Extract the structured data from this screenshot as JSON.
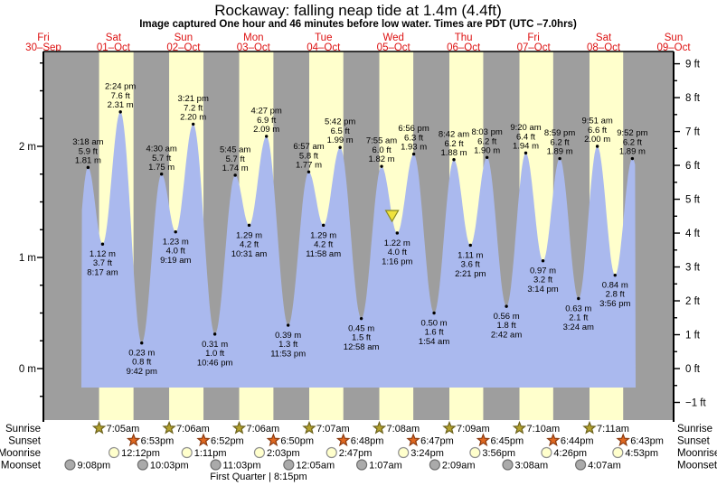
{
  "title": "Rockaway: falling  neap tide at 1.4m (4.4ft)",
  "subtitle": "Image captured One hour and 46 minutes before low water. Times are PDT (UTC –7.0hrs)",
  "colors": {
    "night_band": "#9e9e9e",
    "day_band": "#ffffcc",
    "tide_fill": "#aab9ee",
    "date_text": "#dd1111",
    "sunrise_star": "#b2a12e",
    "sunrise_star_edge": "#6b611c",
    "sunset_star": "#e06820",
    "sunset_star_edge": "#8a3a10",
    "moonrise_dot": "#ffffcc",
    "moonrise_dot_edge": "#909090",
    "moonset_dot": "#aaaaaa",
    "moonset_dot_edge": "#707070",
    "marker_fill": "#f0e23c",
    "marker_edge": "#8a8a20"
  },
  "chart_data": {
    "type": "area",
    "title": "Rockaway: falling  neap tide at 1.4m (4.4ft)",
    "x_axis_days": [
      {
        "name": "Fri",
        "date": "30–Sep"
      },
      {
        "name": "Sat",
        "date": "01–Oct"
      },
      {
        "name": "Sun",
        "date": "02–Oct"
      },
      {
        "name": "Mon",
        "date": "03–Oct"
      },
      {
        "name": "Tue",
        "date": "04–Oct"
      },
      {
        "name": "Wed",
        "date": "05–Oct"
      },
      {
        "name": "Thu",
        "date": "06–Oct"
      },
      {
        "name": "Fri",
        "date": "07–Oct"
      },
      {
        "name": "Sat",
        "date": "08–Oct"
      },
      {
        "name": "Sun",
        "date": "09–Oct"
      }
    ],
    "y_left_ticks": [
      {
        "v": 0,
        "label": "0 m"
      },
      {
        "v": 1,
        "label": "1 m"
      },
      {
        "v": 2,
        "label": "2 m"
      }
    ],
    "y_right_ticks": [
      {
        "v": -1,
        "label": "−1 ft"
      },
      {
        "v": 0,
        "label": "0 ft"
      },
      {
        "v": 1,
        "label": "1 ft"
      },
      {
        "v": 2,
        "label": "2 ft"
      },
      {
        "v": 3,
        "label": "3 ft"
      },
      {
        "v": 4,
        "label": "4 ft"
      },
      {
        "v": 5,
        "label": "5 ft"
      },
      {
        "v": 6,
        "label": "6 ft"
      },
      {
        "v": 7,
        "label": "7 ft"
      },
      {
        "v": 8,
        "label": "8 ft"
      },
      {
        "v": 9,
        "label": "9 ft"
      }
    ],
    "tides": [
      {
        "day": 1,
        "time": "3:18 am",
        "type": "H",
        "ft": "5.9",
        "m": "1.81"
      },
      {
        "day": 1,
        "time": "8:17 am",
        "type": "L",
        "ft": "3.7",
        "m": "1.12"
      },
      {
        "day": 1,
        "time": "2:24 pm",
        "type": "H",
        "ft": "7.6",
        "m": "2.31"
      },
      {
        "day": 1,
        "time": "9:42 pm",
        "type": "L",
        "ft": "0.8",
        "m": "0.23"
      },
      {
        "day": 2,
        "time": "4:30 am",
        "type": "H",
        "ft": "5.7",
        "m": "1.75"
      },
      {
        "day": 2,
        "time": "9:19 am",
        "type": "L",
        "ft": "4.0",
        "m": "1.23"
      },
      {
        "day": 2,
        "time": "3:21 pm",
        "type": "H",
        "ft": "7.2",
        "m": "2.20"
      },
      {
        "day": 2,
        "time": "10:46 pm",
        "type": "L",
        "ft": "1.0",
        "m": "0.31"
      },
      {
        "day": 3,
        "time": "5:45 am",
        "type": "H",
        "ft": "5.7",
        "m": "1.74"
      },
      {
        "day": 3,
        "time": "10:31 am",
        "type": "L",
        "ft": "4.2",
        "m": "1.29"
      },
      {
        "day": 3,
        "time": "4:27 pm",
        "type": "H",
        "ft": "6.9",
        "m": "2.09"
      },
      {
        "day": 3,
        "time": "11:53 pm",
        "type": "L",
        "ft": "1.3",
        "m": "0.39"
      },
      {
        "day": 4,
        "time": "6:57 am",
        "type": "H",
        "ft": "5.8",
        "m": "1.77"
      },
      {
        "day": 4,
        "time": "11:58 am",
        "type": "L",
        "ft": "4.2",
        "m": "1.29"
      },
      {
        "day": 4,
        "time": "5:42 pm",
        "type": "H",
        "ft": "6.5",
        "m": "1.99"
      },
      {
        "day": 5,
        "time": "12:58 am",
        "type": "L",
        "ft": "1.5",
        "m": "0.45"
      },
      {
        "day": 5,
        "time": "7:55 am",
        "type": "H",
        "ft": "6.0",
        "m": "1.82"
      },
      {
        "day": 5,
        "time": "1:16 pm",
        "type": "L",
        "ft": "4.0",
        "m": "1.22"
      },
      {
        "day": 5,
        "time": "6:56 pm",
        "type": "H",
        "ft": "6.3",
        "m": "1.93"
      },
      {
        "day": 6,
        "time": "1:54 am",
        "type": "L",
        "ft": "1.6",
        "m": "0.50"
      },
      {
        "day": 6,
        "time": "8:42 am",
        "type": "H",
        "ft": "6.2",
        "m": "1.88"
      },
      {
        "day": 6,
        "time": "2:21 pm",
        "type": "L",
        "ft": "3.6",
        "m": "1.11"
      },
      {
        "day": 6,
        "time": "8:03 pm",
        "type": "H",
        "ft": "6.2",
        "m": "1.90"
      },
      {
        "day": 7,
        "time": "2:42 am",
        "type": "L",
        "ft": "1.8",
        "m": "0.56"
      },
      {
        "day": 7,
        "time": "9:20 am",
        "type": "H",
        "ft": "6.4",
        "m": "1.94"
      },
      {
        "day": 7,
        "time": "3:14 pm",
        "type": "L",
        "ft": "3.2",
        "m": "0.97"
      },
      {
        "day": 7,
        "time": "8:59 pm",
        "type": "H",
        "ft": "6.2",
        "m": "1.89"
      },
      {
        "day": 8,
        "time": "3:24 am",
        "type": "L",
        "ft": "2.1",
        "m": "0.63"
      },
      {
        "day": 8,
        "time": "9:51 am",
        "type": "H",
        "ft": "6.6",
        "m": "2.00"
      },
      {
        "day": 8,
        "time": "3:56 pm",
        "type": "L",
        "ft": "2.8",
        "m": "0.84"
      },
      {
        "day": 8,
        "time": "9:52 pm",
        "type": "H",
        "ft": "6.2",
        "m": "1.89"
      }
    ],
    "capture_marker": {
      "day": 5,
      "time": "11:30 am",
      "note": "One hour and 46 minutes before 1:16 pm low water"
    },
    "astro_rows": [
      {
        "label": "Sunrise",
        "icon": "sunrise-star",
        "events": [
          {
            "day": 1,
            "time": "7:05am"
          },
          {
            "day": 2,
            "time": "7:06am"
          },
          {
            "day": 3,
            "time": "7:06am"
          },
          {
            "day": 4,
            "time": "7:07am"
          },
          {
            "day": 5,
            "time": "7:08am"
          },
          {
            "day": 6,
            "time": "7:09am"
          },
          {
            "day": 7,
            "time": "7:10am"
          },
          {
            "day": 8,
            "time": "7:11am"
          }
        ]
      },
      {
        "label": "Sunset",
        "icon": "sunset-star",
        "events": [
          {
            "day": 1,
            "time": "6:53pm"
          },
          {
            "day": 2,
            "time": "6:52pm"
          },
          {
            "day": 3,
            "time": "6:50pm"
          },
          {
            "day": 4,
            "time": "6:48pm"
          },
          {
            "day": 5,
            "time": "6:47pm"
          },
          {
            "day": 6,
            "time": "6:45pm"
          },
          {
            "day": 7,
            "time": "6:44pm"
          },
          {
            "day": 8,
            "time": "6:43pm"
          }
        ]
      },
      {
        "label": "Moonrise",
        "icon": "moonrise-circle",
        "events": [
          {
            "day": 1,
            "time": "12:12pm"
          },
          {
            "day": 2,
            "time": "1:11pm"
          },
          {
            "day": 3,
            "time": "2:03pm"
          },
          {
            "day": 4,
            "time": "2:47pm"
          },
          {
            "day": 5,
            "time": "3:24pm"
          },
          {
            "day": 6,
            "time": "3:56pm"
          },
          {
            "day": 7,
            "time": "4:26pm"
          },
          {
            "day": 8,
            "time": "4:53pm"
          }
        ]
      },
      {
        "label": "Moonset",
        "icon": "moonset-circle",
        "events": [
          {
            "day": 0,
            "time": "9:08pm"
          },
          {
            "day": 1,
            "time": "10:03pm"
          },
          {
            "day": 2,
            "time": "11:03pm"
          },
          {
            "day": 4,
            "time": "12:05am"
          },
          {
            "day": 5,
            "time": "1:07am"
          },
          {
            "day": 6,
            "time": "2:09am"
          },
          {
            "day": 7,
            "time": "3:08am"
          },
          {
            "day": 8,
            "time": "4:07am"
          }
        ]
      }
    ],
    "moon_phase": "First Quarter | 8:15pm"
  }
}
